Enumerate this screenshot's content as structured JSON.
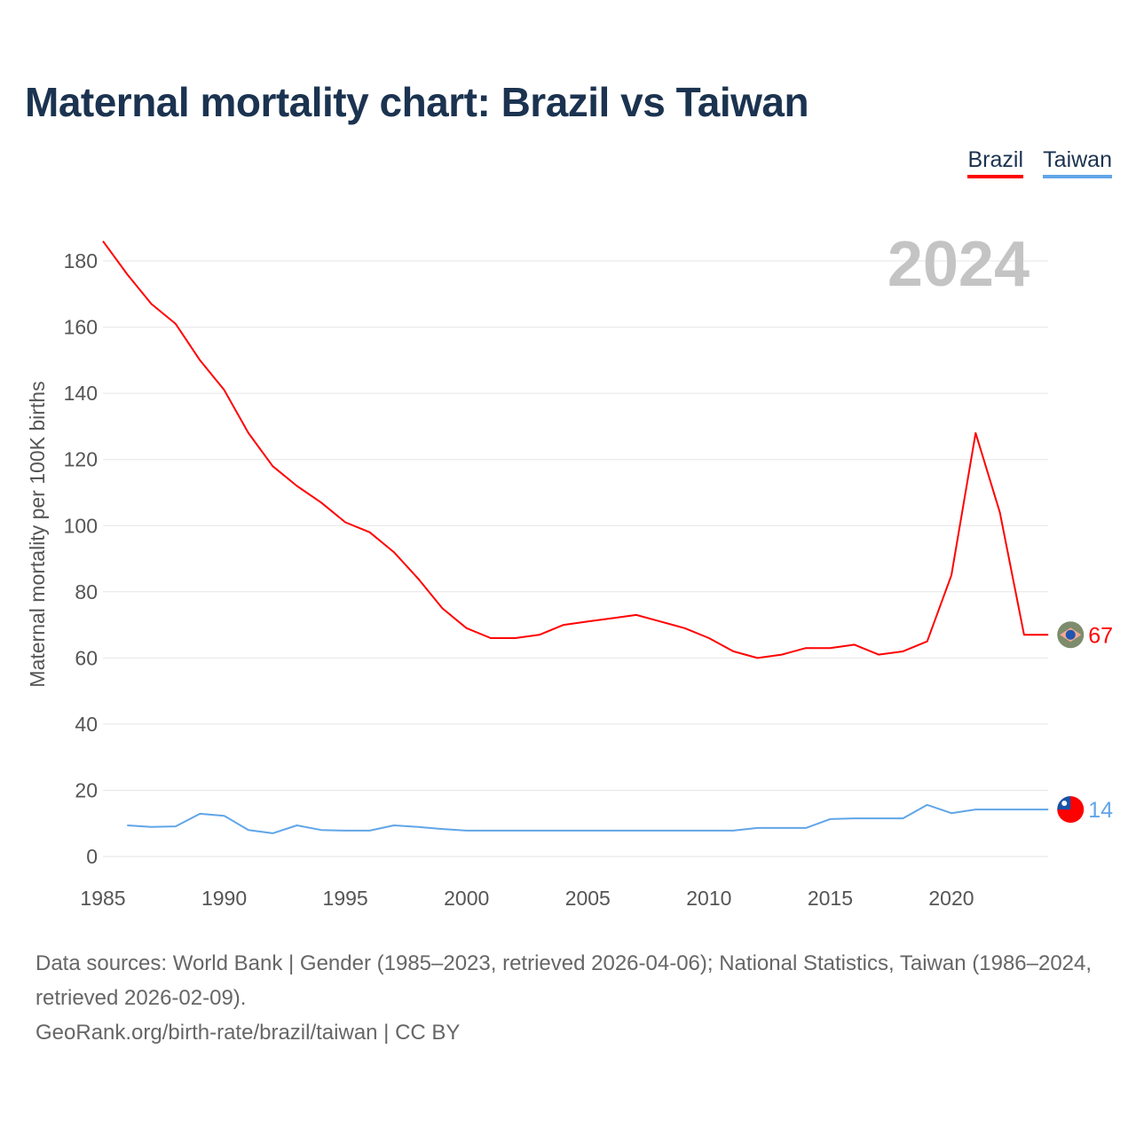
{
  "title": "Maternal mortality chart: Brazil vs Taiwan",
  "legend": [
    "Brazil",
    "Taiwan"
  ],
  "year_label": "2024",
  "footer": {
    "sources": "Data sources: World Bank | Gender (1985–2023, retrieved 2026-04-06); National Statistics, Taiwan (1986–2024, retrieved 2026-02-09).",
    "credit": "GeoRank.org/birth-rate/brazil/taiwan | CC BY"
  },
  "chart_data": {
    "type": "line",
    "title": "Maternal mortality chart: Brazil vs Taiwan",
    "xlabel": "",
    "ylabel": "Maternal mortality per 100K births",
    "xlim": [
      1985,
      2024
    ],
    "ylim": [
      0,
      190
    ],
    "xticks": [
      1985,
      1990,
      1995,
      2000,
      2005,
      2010,
      2015,
      2020
    ],
    "yticks": [
      0,
      20,
      40,
      60,
      80,
      100,
      120,
      140,
      160,
      180
    ],
    "grid": true,
    "legend_position": "top-right",
    "series": [
      {
        "name": "Brazil",
        "color": "#ff0000",
        "end_label": "67",
        "x": [
          1985,
          1986,
          1987,
          1988,
          1989,
          1990,
          1991,
          1992,
          1993,
          1994,
          1995,
          1996,
          1997,
          1998,
          1999,
          2000,
          2001,
          2002,
          2003,
          2004,
          2005,
          2006,
          2007,
          2008,
          2009,
          2010,
          2011,
          2012,
          2013,
          2014,
          2015,
          2016,
          2017,
          2018,
          2019,
          2020,
          2021,
          2022,
          2023,
          2024
        ],
        "values": [
          186,
          176,
          167,
          161,
          150,
          141,
          128,
          118,
          112,
          107,
          101,
          98,
          92,
          84,
          75,
          69,
          66,
          66,
          67,
          70,
          71,
          72,
          73,
          71,
          69,
          66,
          62,
          60,
          61,
          63,
          63,
          64,
          61,
          62,
          65,
          85,
          128,
          104,
          67,
          67
        ]
      },
      {
        "name": "Taiwan",
        "color": "#60a5e8",
        "end_label": "14",
        "x": [
          1986,
          1987,
          1988,
          1989,
          1990,
          1991,
          1992,
          1993,
          1994,
          1995,
          1996,
          1997,
          1998,
          1999,
          2000,
          2001,
          2002,
          2003,
          2004,
          2005,
          2006,
          2007,
          2008,
          2009,
          2010,
          2011,
          2012,
          2013,
          2014,
          2015,
          2016,
          2017,
          2018,
          2019,
          2020,
          2021,
          2022,
          2023,
          2024
        ],
        "values": [
          9.4,
          8.9,
          9.1,
          12.9,
          12.3,
          8.0,
          7.0,
          9.4,
          8.0,
          7.8,
          7.8,
          9.4,
          8.9,
          8.3,
          7.8,
          7.8,
          7.8,
          7.8,
          7.8,
          7.8,
          7.8,
          7.8,
          7.8,
          7.8,
          7.8,
          7.8,
          8.6,
          8.6,
          8.6,
          11.3,
          11.5,
          11.5,
          11.5,
          15.6,
          13.1,
          14.2,
          14.2,
          14.2,
          14.2
        ]
      }
    ]
  }
}
